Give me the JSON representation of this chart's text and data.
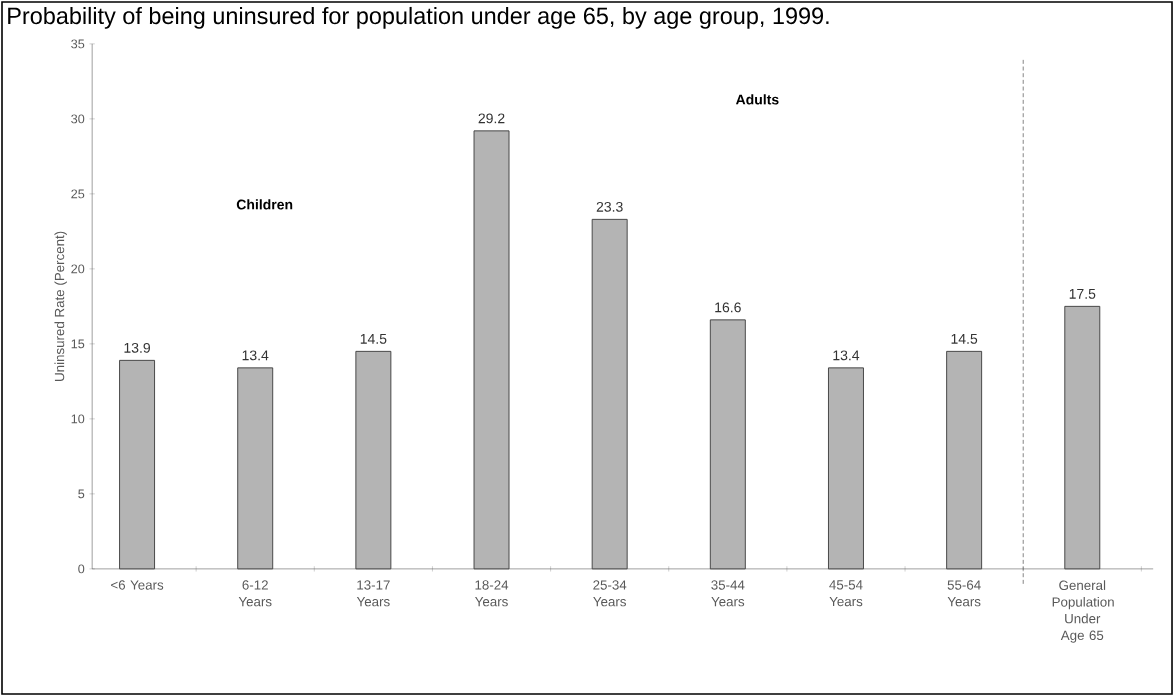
{
  "chart_data": {
    "type": "bar",
    "title": "Probability of being uninsured for population under age 65, by age group, 1999.",
    "ylabel": "Uninsured Rate (Percent)",
    "categories": [
      "<6 Years",
      "6-12 Years",
      "13-17 Years",
      "18-24 Years",
      "25-34 Years",
      "35-44 Years",
      "45-54 Years",
      "55-64 Years",
      "General Population Under Age 65"
    ],
    "values": [
      13.9,
      13.4,
      14.5,
      29.2,
      23.3,
      16.6,
      13.4,
      14.5,
      17.5
    ],
    "color": "#b4b4b4",
    "ylim": [
      0,
      35
    ],
    "yticks": [
      0,
      5,
      10,
      15,
      20,
      25,
      30,
      35
    ],
    "data_labels": true,
    "annotations": [
      "Children",
      "Adults"
    ]
  }
}
